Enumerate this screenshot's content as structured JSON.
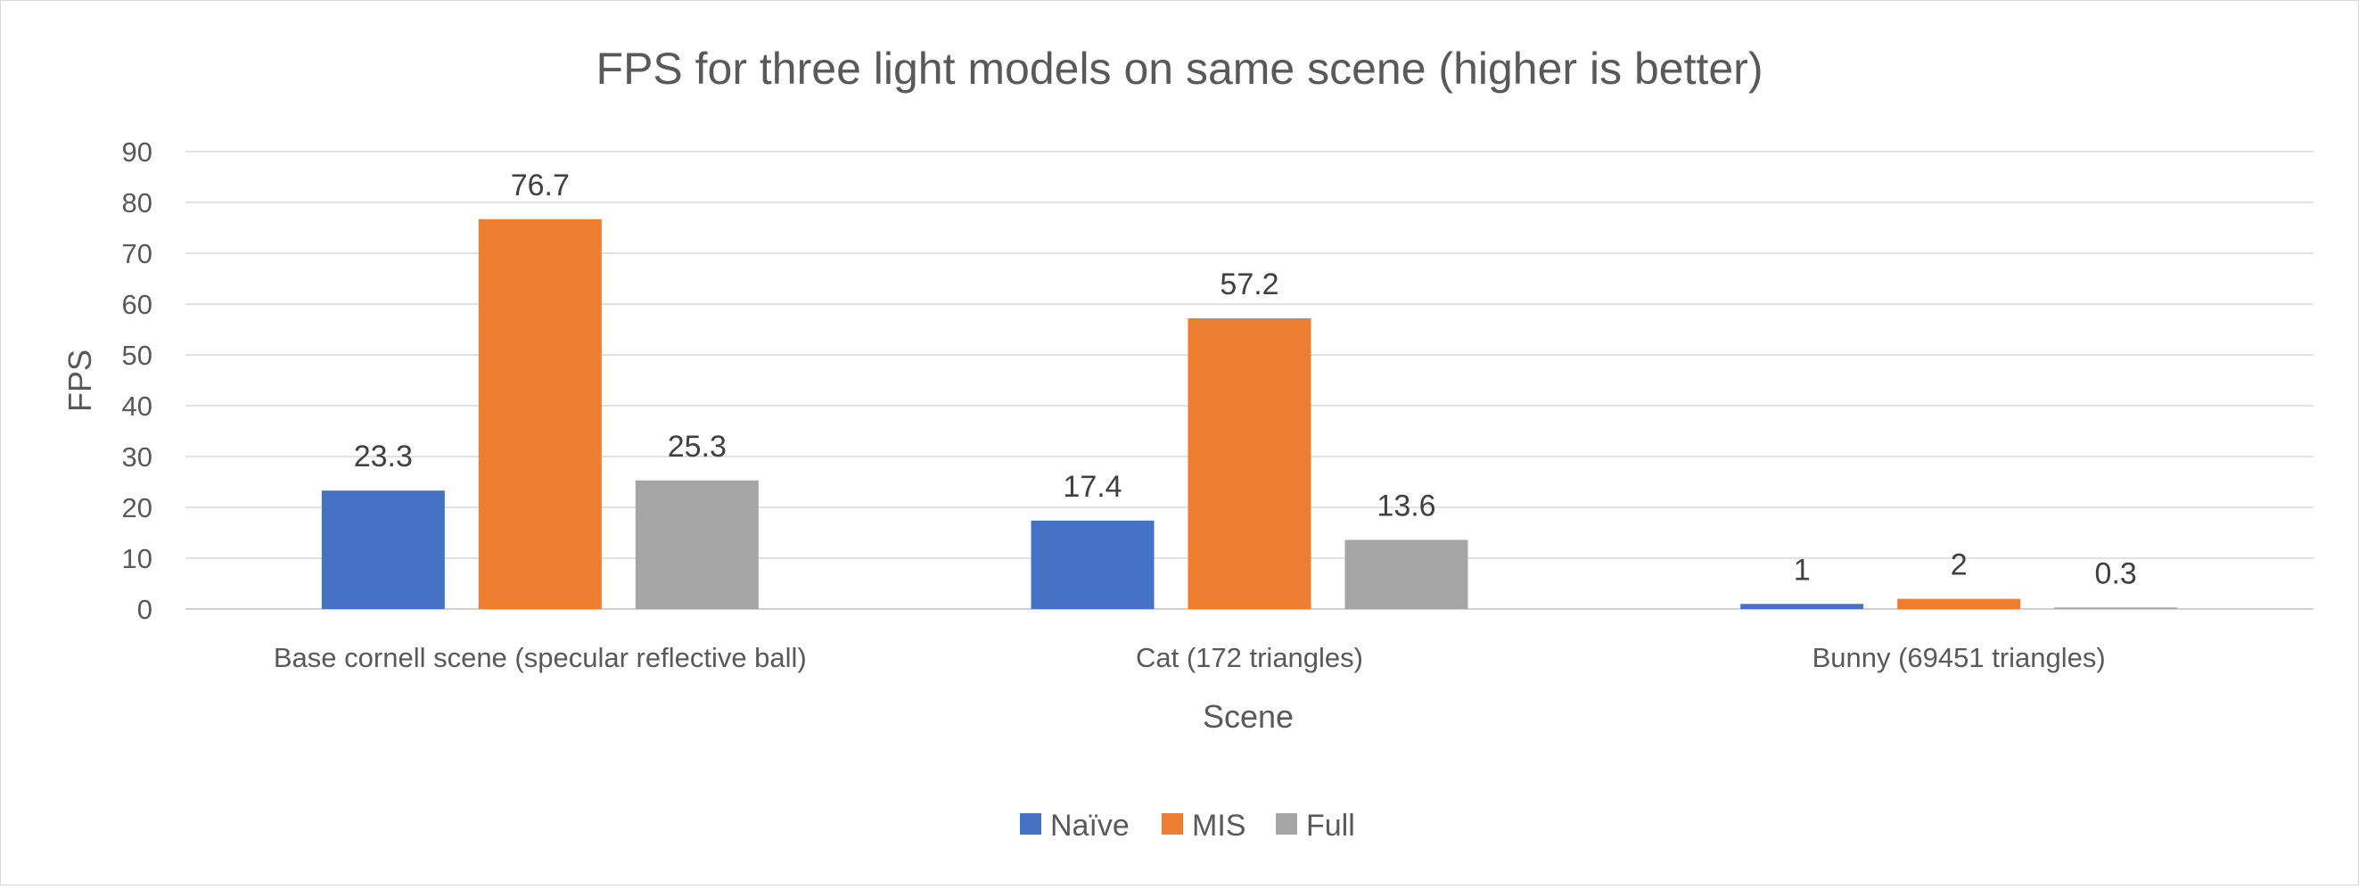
{
  "chart_data": {
    "type": "bar",
    "title": "FPS for three light models on same scene (higher is better)",
    "xlabel": "Scene",
    "ylabel": "FPS",
    "ylim": [
      0,
      90
    ],
    "yticks": [
      0,
      10,
      20,
      30,
      40,
      50,
      60,
      70,
      80,
      90
    ],
    "categories": [
      "Base cornell scene (specular reflective ball)",
      "Cat (172 triangles)",
      "Bunny (69451 triangles)"
    ],
    "series": [
      {
        "name": "Naïve",
        "color": "#4472c4",
        "values": [
          23.3,
          17.4,
          1
        ]
      },
      {
        "name": "MIS",
        "color": "#ed7d31",
        "values": [
          76.7,
          57.2,
          2
        ]
      },
      {
        "name": "Full",
        "color": "#a5a5a5",
        "values": [
          25.3,
          13.6,
          0.3
        ]
      }
    ],
    "grid": true,
    "legend_position": "bottom"
  }
}
